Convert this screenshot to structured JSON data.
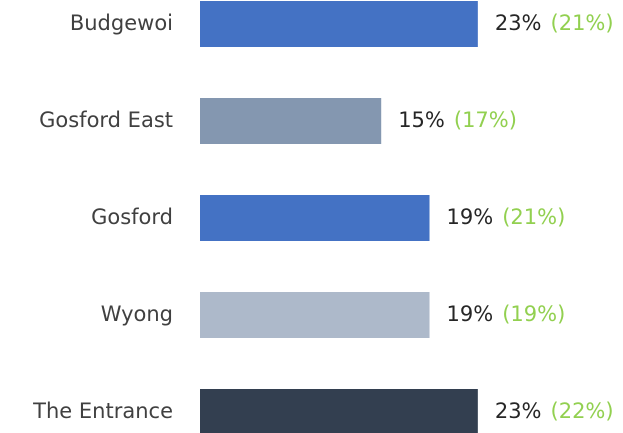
{
  "chart_data": {
    "type": "bar",
    "orientation": "horizontal",
    "categories": [
      "Budgewoi",
      "Gosford East",
      "Gosford",
      "Wyong",
      "The Entrance"
    ],
    "values": [
      23,
      15,
      19,
      19,
      23
    ],
    "value_labels": [
      "23%",
      "15%",
      "19%",
      "19%",
      "23%"
    ],
    "colors": [
      "#4472c4",
      "#8497b0",
      "#4472c4",
      "#adb9ca",
      "#333f50"
    ],
    "comparison": {
      "values": [
        21,
        17,
        21,
        19,
        22
      ],
      "value_labels": [
        "(21%)",
        "(17%)",
        "(21%)",
        "(19%)",
        "(22%)"
      ],
      "color": "#92d050"
    }
  }
}
